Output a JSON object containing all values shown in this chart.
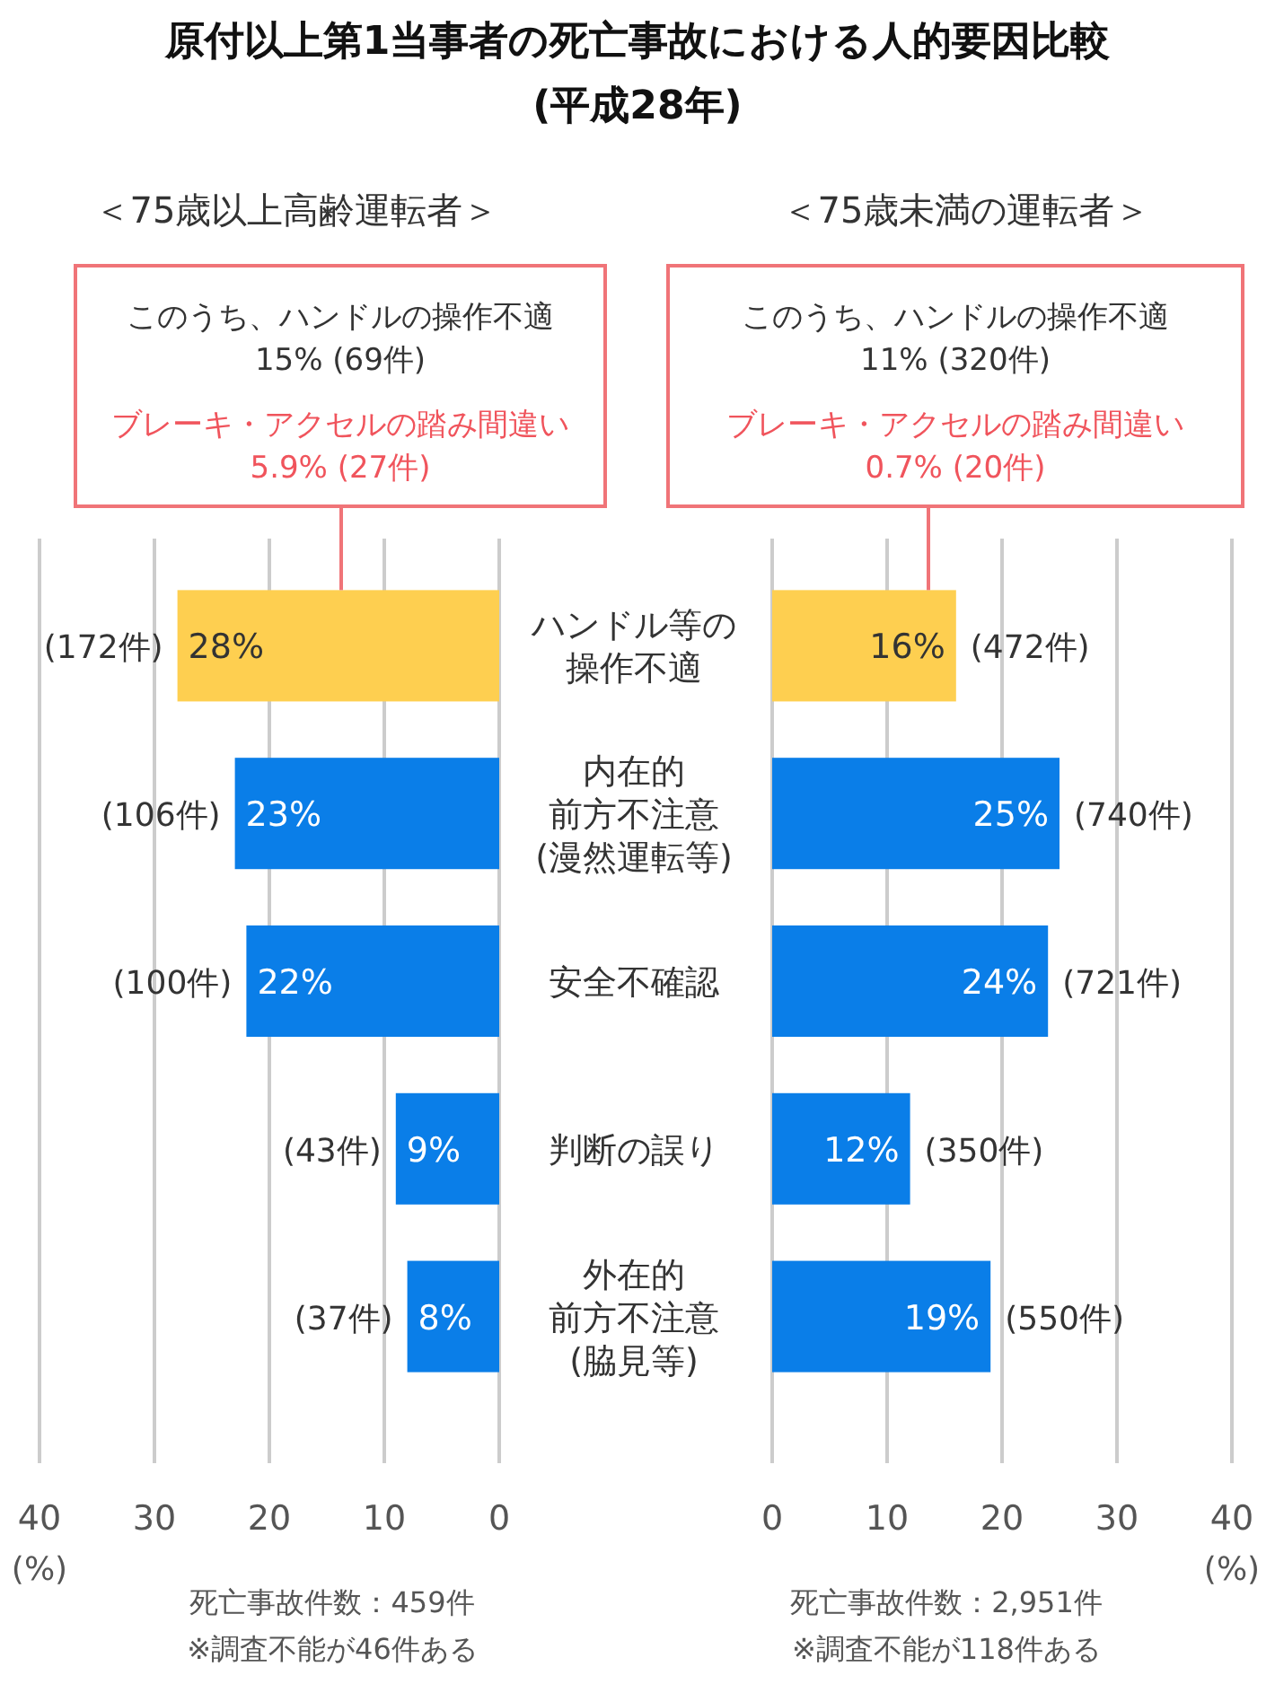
{
  "chart_data": [
    {
      "type": "bar",
      "orientation": "horizontal",
      "title": "原付以上第1当事者の死亡事故における人的要因比較\n(平成28年)",
      "subtitle": "＜75歳以上高齢運転者＞",
      "xlabel": "(%)",
      "categories": [
        "ハンドル等の操作不適",
        "内在的前方不注意(漫然運転等)",
        "安全不確認",
        "判断の誤り",
        "外在的前方不注意(脇見等)"
      ],
      "values": [
        28,
        23,
        22,
        9,
        8
      ],
      "value_labels": [
        "28%",
        "23%",
        "22%",
        "9%",
        "8%"
      ],
      "colors": [
        "#fecf50",
        "#0a7ee8",
        "#0a7ee8",
        "#0a7ee8",
        "#0a7ee8"
      ],
      "xlim": [
        40,
        0
      ],
      "xticks": [
        40,
        30,
        20,
        10,
        0
      ],
      "grid": "x",
      "annotations": [
        "このうち、ハンドルの操作不適\n15% (69件)",
        "ブレーキ・アクセルの踏み間違い\n5.9% (27件)",
        "死亡事故件数：459件\n※調査不能が46件ある",
        {
          "text": "(172件)",
          "x": 28,
          "y": "ハンドル等の操作不適"
        },
        {
          "text": "(106件)",
          "x": 23,
          "y": "内在的前方不注意(漫然運転等)"
        },
        {
          "text": "(100件)",
          "x": 22,
          "y": "安全不確認"
        },
        {
          "text": "(43件)",
          "x": 9,
          "y": "判断の誤り"
        },
        {
          "text": "(37件)",
          "x": 8,
          "y": "外在的前方不注意(脇見等)"
        }
      ]
    },
    {
      "type": "bar",
      "orientation": "horizontal",
      "subtitle": "＜75歳未満の運転者＞",
      "xlabel": "(%)",
      "tick_labels": "x",
      "categories": [
        "ハンドル等の操作不適",
        "内在的前方不注意(漫然運転等)",
        "安全不確認",
        "判断の誤り",
        "外在的前方不注意(脇見等)"
      ],
      "values": [
        16,
        25,
        24,
        12,
        19
      ],
      "value_labels": [
        "16%",
        "25%",
        "24%",
        "12%",
        "19%"
      ],
      "colors": [
        "#fecf50",
        "#0a7ee8",
        "#0a7ee8",
        "#0a7ee8",
        "#0a7ee8"
      ],
      "xlim": [
        0,
        40
      ],
      "xticks": [
        0,
        10,
        20,
        30,
        40
      ],
      "grid": "x",
      "annotations": [
        "このうち、ハンドルの操作不適\n11% (320件)",
        "ブレーキ・アクセルの踏み間違い\n0.7% (20件)",
        "死亡事故件数：2,951件\n※調査不能が118件ある",
        {
          "text": "(472件)",
          "x": 16,
          "y": "ハンドル等の操作不適"
        },
        {
          "text": "(740件)",
          "x": 25,
          "y": "内在的前方不注意(漫然運転等)"
        },
        {
          "text": "(721件)",
          "x": 24,
          "y": "安全不確認"
        },
        {
          "text": "(350件)",
          "x": 12,
          "y": "判断の誤り"
        },
        {
          "text": "(550件)",
          "x": 19,
          "y": "外在的前方不注意(脇見等)"
        }
      ]
    }
  ]
}
